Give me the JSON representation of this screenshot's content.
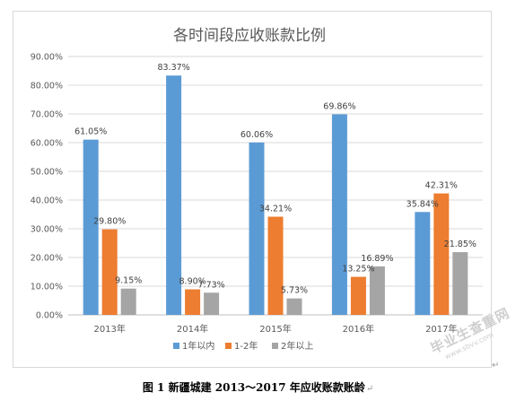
{
  "chart_data": {
    "type": "bar",
    "title": "各时间段应收账款比例",
    "categories": [
      "2013年",
      "2014年",
      "2015年",
      "2016年",
      "2017年"
    ],
    "series": [
      {
        "name": "1年以内",
        "color": "#5b9bd5",
        "values": [
          61.05,
          83.37,
          60.06,
          69.86,
          35.84
        ]
      },
      {
        "name": "1-2年",
        "color": "#ed7d31",
        "values": [
          29.8,
          8.9,
          34.21,
          13.25,
          42.31
        ]
      },
      {
        "name": "2年以上",
        "color": "#a5a5a5",
        "values": [
          9.15,
          7.73,
          5.73,
          16.89,
          21.85
        ]
      }
    ],
    "data_labels": [
      [
        "61.05%",
        "83.37%",
        "60.06%",
        "69.86%",
        "35.84%"
      ],
      [
        "29.80%",
        "8.90%",
        "34.21%",
        "13.25%",
        "42.31%"
      ],
      [
        "9.15%",
        "7.73%",
        "5.73%",
        "16.89%",
        "21.85%"
      ]
    ],
    "y_ticks": [
      "0.00%",
      "10.00%",
      "20.00%",
      "30.00%",
      "40.00%",
      "50.00%",
      "60.00%",
      "70.00%",
      "80.00%",
      "90.00%"
    ],
    "ylim": [
      0,
      90
    ],
    "grid": true,
    "legend_position": "bottom"
  },
  "caption": "图 1  新疆城建 2013～2017 年应收账款账龄",
  "caption_mark": "↵",
  "corner_mark": "↵",
  "watermark": {
    "main": "毕业生查重网",
    "url": "www.sbvv.com"
  }
}
